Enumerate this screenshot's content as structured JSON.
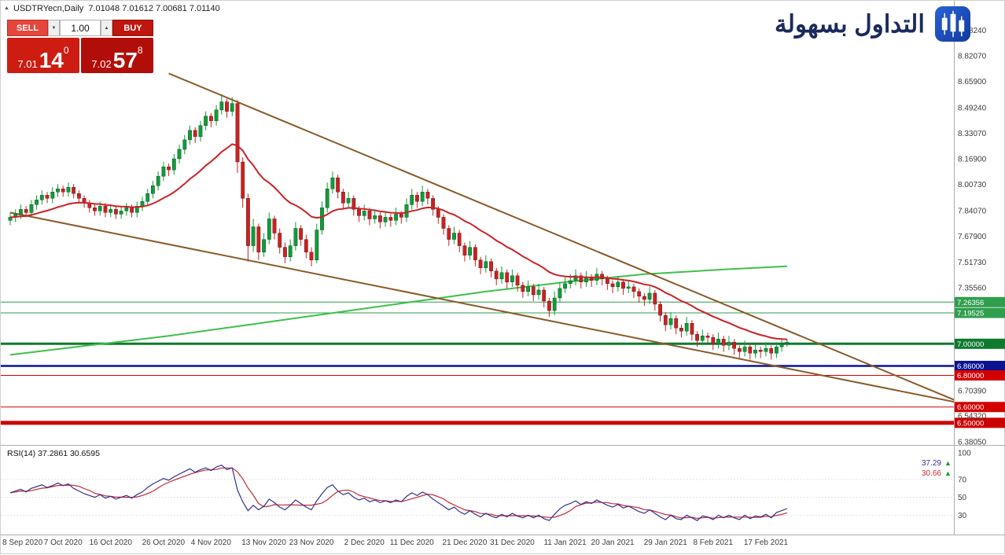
{
  "window": {
    "title_marker": "▲",
    "chart_title": "USDTRYecn,Daily  7.01048 7.01612 7.00681 7.01140"
  },
  "icons": {
    "caret_down": "▼",
    "caret_up": "▲",
    "marker_arrow": "▲"
  },
  "trade_panel": {
    "sell_label": "SELL",
    "buy_label": "BUY",
    "volume": "1.00",
    "sell_price": {
      "prefix": "7.01",
      "pips": "14",
      "sup": "0"
    },
    "buy_price": {
      "prefix": "7.02",
      "pips": "57",
      "sup": "8"
    }
  },
  "logo": {
    "text": "التداول بسهولة"
  },
  "colors": {
    "bull": "#0aa035",
    "bear": "#cf1f1f",
    "rsi_main": "#32328c",
    "rsi_signal": "#c22a33",
    "axis_text": "#3c3c3c",
    "frame": "#adadad",
    "marker_green": "#0c9b35"
  },
  "chart_data": {
    "type": "candlestick",
    "title": "USDTRYecn,Daily",
    "symbol": "USDTRYecn",
    "timeframe": "Daily",
    "current_ohlc": {
      "open": "7.01048",
      "high": "7.01612",
      "low": "7.00681",
      "close": "7.01140"
    },
    "y_axis": {
      "min": 6.375,
      "max": 9.07,
      "ticks": [
        8.9824,
        8.8207,
        8.659,
        8.4924,
        8.3307,
        8.169,
        8.0073,
        7.8407,
        7.679,
        7.5173,
        7.3556,
        6.7039,
        6.5432,
        6.3805
      ]
    },
    "x_labels": [
      "8 Sep 2020",
      "7 Oct 2020",
      "16 Oct 2020",
      "26 Oct 2020",
      "4 Nov 2020",
      "13 Nov 2020",
      "23 Nov 2020",
      "2 Dec 2020",
      "11 Dec 2020",
      "21 Dec 2020",
      "31 Dec 2020",
      "11 Jan 2021",
      "20 Jan 2021",
      "29 Jan 2021",
      "8 Feb 2021",
      "17 Feb 2021"
    ],
    "levels": [
      {
        "price": 7.26356,
        "label": "7.26356",
        "color": "#2f9e4e",
        "width": 1
      },
      {
        "price": 7.19525,
        "label": "7.19525",
        "color": "#2f9e4e",
        "width": 1
      },
      {
        "price": 7.0,
        "label": "7.00000",
        "color": "#0e7a2e",
        "width": 3
      },
      {
        "price": 6.86,
        "label": "6.86000",
        "color": "#0b1390",
        "width": 2.5
      },
      {
        "price": 6.8,
        "label": "6.80000",
        "color": "#d40000",
        "width": 1
      },
      {
        "price": 6.6,
        "label": "6.60000",
        "color": "#d40000",
        "width": 1
      },
      {
        "price": 6.5,
        "label": "6.50000",
        "color": "#cc0000",
        "width": 5
      }
    ],
    "trendlines": [
      {
        "from": [
          30,
          8.71
        ],
        "to": [
          179,
          6.64
        ],
        "color": "#8a5a28",
        "width": 2
      },
      {
        "from": [
          0,
          7.83
        ],
        "to": [
          179,
          6.63
        ],
        "color": "#8a5a28",
        "width": 2
      }
    ],
    "moving_averages": {
      "red": {
        "type": "ema",
        "period": 21,
        "color": "#cc2127"
      },
      "green": {
        "type": "sma-long",
        "color": "#3fbf4a",
        "points": [
          [
            0,
            6.93
          ],
          [
            15,
            6.99
          ],
          [
            30,
            7.05
          ],
          [
            45,
            7.12
          ],
          [
            60,
            7.19
          ],
          [
            75,
            7.26
          ],
          [
            90,
            7.33
          ],
          [
            105,
            7.39
          ],
          [
            120,
            7.44
          ],
          [
            135,
            7.47
          ],
          [
            147,
            7.49
          ]
        ]
      }
    },
    "ohlc": [
      [
        7.78,
        7.83,
        7.75,
        7.8
      ],
      [
        7.8,
        7.85,
        7.77,
        7.82
      ],
      [
        7.82,
        7.88,
        7.79,
        7.85
      ],
      [
        7.85,
        7.87,
        7.8,
        7.83
      ],
      [
        7.83,
        7.91,
        7.8,
        7.88
      ],
      [
        7.88,
        7.94,
        7.85,
        7.91
      ],
      [
        7.91,
        7.97,
        7.88,
        7.94
      ],
      [
        7.94,
        7.96,
        7.89,
        7.92
      ],
      [
        7.92,
        7.99,
        7.89,
        7.96
      ],
      [
        7.96,
        8.01,
        7.93,
        7.98
      ],
      [
        7.98,
        8.0,
        7.93,
        7.96
      ],
      [
        7.96,
        8.02,
        7.93,
        7.99
      ],
      [
        7.99,
        8.01,
        7.92,
        7.95
      ],
      [
        7.95,
        7.97,
        7.89,
        7.92
      ],
      [
        7.92,
        7.94,
        7.86,
        7.89
      ],
      [
        7.89,
        7.91,
        7.83,
        7.86
      ],
      [
        7.86,
        7.88,
        7.81,
        7.84
      ],
      [
        7.84,
        7.9,
        7.81,
        7.87
      ],
      [
        7.87,
        7.89,
        7.8,
        7.83
      ],
      [
        7.83,
        7.88,
        7.8,
        7.85
      ],
      [
        7.85,
        7.87,
        7.79,
        7.82
      ],
      [
        7.82,
        7.87,
        7.79,
        7.84
      ],
      [
        7.84,
        7.89,
        7.81,
        7.86
      ],
      [
        7.86,
        7.88,
        7.8,
        7.83
      ],
      [
        7.83,
        7.9,
        7.8,
        7.87
      ],
      [
        7.87,
        7.93,
        7.84,
        7.9
      ],
      [
        7.9,
        7.98,
        7.87,
        7.95
      ],
      [
        7.95,
        8.03,
        7.92,
        8.0
      ],
      [
        8.0,
        8.09,
        7.97,
        8.06
      ],
      [
        8.06,
        8.15,
        8.03,
        8.12
      ],
      [
        8.12,
        8.14,
        8.06,
        8.1
      ],
      [
        8.1,
        8.2,
        8.07,
        8.17
      ],
      [
        8.17,
        8.26,
        8.14,
        8.23
      ],
      [
        8.23,
        8.32,
        8.2,
        8.29
      ],
      [
        8.29,
        8.38,
        8.26,
        8.35
      ],
      [
        8.35,
        8.37,
        8.27,
        8.31
      ],
      [
        8.31,
        8.41,
        8.28,
        8.38
      ],
      [
        8.38,
        8.47,
        8.35,
        8.44
      ],
      [
        8.44,
        8.46,
        8.37,
        8.41
      ],
      [
        8.41,
        8.51,
        8.38,
        8.48
      ],
      [
        8.48,
        8.58,
        8.45,
        8.53
      ],
      [
        8.53,
        8.55,
        8.43,
        8.47
      ],
      [
        8.47,
        8.56,
        8.44,
        8.52
      ],
      [
        8.52,
        8.54,
        8.08,
        8.15
      ],
      [
        8.15,
        8.18,
        7.86,
        7.92
      ],
      [
        7.92,
        7.95,
        7.52,
        7.62
      ],
      [
        7.62,
        7.79,
        7.58,
        7.74
      ],
      [
        7.74,
        7.76,
        7.53,
        7.58
      ],
      [
        7.58,
        7.7,
        7.55,
        7.66
      ],
      [
        7.66,
        7.83,
        7.63,
        7.79
      ],
      [
        7.79,
        7.81,
        7.66,
        7.7
      ],
      [
        7.7,
        7.73,
        7.57,
        7.61
      ],
      [
        7.61,
        7.64,
        7.51,
        7.55
      ],
      [
        7.55,
        7.66,
        7.52,
        7.62
      ],
      [
        7.62,
        7.77,
        7.59,
        7.73
      ],
      [
        7.73,
        7.75,
        7.62,
        7.66
      ],
      [
        7.66,
        7.69,
        7.54,
        7.58
      ],
      [
        7.58,
        7.61,
        7.49,
        7.53
      ],
      [
        7.53,
        7.76,
        7.51,
        7.72
      ],
      [
        7.72,
        7.9,
        7.69,
        7.86
      ],
      [
        7.86,
        8.02,
        7.83,
        7.98
      ],
      [
        7.98,
        8.09,
        7.95,
        8.05
      ],
      [
        8.05,
        8.07,
        7.92,
        7.96
      ],
      [
        7.96,
        7.98,
        7.85,
        7.89
      ],
      [
        7.89,
        7.96,
        7.86,
        7.92
      ],
      [
        7.92,
        7.94,
        7.81,
        7.85
      ],
      [
        7.85,
        7.87,
        7.77,
        7.81
      ],
      [
        7.81,
        7.88,
        7.78,
        7.84
      ],
      [
        7.84,
        7.86,
        7.75,
        7.79
      ],
      [
        7.79,
        7.85,
        7.76,
        7.81
      ],
      [
        7.81,
        7.83,
        7.73,
        7.77
      ],
      [
        7.77,
        7.84,
        7.74,
        7.8
      ],
      [
        7.8,
        7.82,
        7.74,
        7.78
      ],
      [
        7.78,
        7.86,
        7.75,
        7.82
      ],
      [
        7.82,
        7.84,
        7.76,
        7.8
      ],
      [
        7.8,
        7.92,
        7.77,
        7.88
      ],
      [
        7.88,
        7.98,
        7.85,
        7.94
      ],
      [
        7.94,
        7.96,
        7.86,
        7.9
      ],
      [
        7.9,
        8.0,
        7.87,
        7.96
      ],
      [
        7.96,
        7.98,
        7.88,
        7.92
      ],
      [
        7.92,
        7.94,
        7.81,
        7.85
      ],
      [
        7.85,
        7.87,
        7.76,
        7.8
      ],
      [
        7.8,
        7.82,
        7.69,
        7.73
      ],
      [
        7.73,
        7.75,
        7.62,
        7.66
      ],
      [
        7.66,
        7.74,
        7.63,
        7.7
      ],
      [
        7.7,
        7.72,
        7.58,
        7.62
      ],
      [
        7.62,
        7.64,
        7.52,
        7.56
      ],
      [
        7.56,
        7.65,
        7.53,
        7.61
      ],
      [
        7.61,
        7.63,
        7.49,
        7.53
      ],
      [
        7.53,
        7.55,
        7.44,
        7.48
      ],
      [
        7.48,
        7.56,
        7.45,
        7.52
      ],
      [
        7.52,
        7.54,
        7.42,
        7.46
      ],
      [
        7.46,
        7.48,
        7.37,
        7.41
      ],
      [
        7.41,
        7.49,
        7.38,
        7.45
      ],
      [
        7.45,
        7.47,
        7.35,
        7.39
      ],
      [
        7.39,
        7.47,
        7.36,
        7.43
      ],
      [
        7.43,
        7.45,
        7.33,
        7.37
      ],
      [
        7.37,
        7.39,
        7.29,
        7.33
      ],
      [
        7.33,
        7.4,
        7.3,
        7.36
      ],
      [
        7.36,
        7.38,
        7.27,
        7.31
      ],
      [
        7.31,
        7.38,
        7.28,
        7.34
      ],
      [
        7.34,
        7.36,
        7.23,
        7.27
      ],
      [
        7.27,
        7.29,
        7.17,
        7.21
      ],
      [
        7.21,
        7.33,
        7.18,
        7.29
      ],
      [
        7.29,
        7.39,
        7.26,
        7.35
      ],
      [
        7.35,
        7.42,
        7.32,
        7.38
      ],
      [
        7.38,
        7.44,
        7.35,
        7.4
      ],
      [
        7.4,
        7.47,
        7.37,
        7.43
      ],
      [
        7.43,
        7.45,
        7.35,
        7.39
      ],
      [
        7.39,
        7.46,
        7.36,
        7.42
      ],
      [
        7.42,
        7.44,
        7.36,
        7.4
      ],
      [
        7.4,
        7.48,
        7.37,
        7.44
      ],
      [
        7.44,
        7.46,
        7.37,
        7.41
      ],
      [
        7.41,
        7.43,
        7.34,
        7.38
      ],
      [
        7.38,
        7.4,
        7.32,
        7.36
      ],
      [
        7.36,
        7.43,
        7.33,
        7.39
      ],
      [
        7.39,
        7.41,
        7.31,
        7.35
      ],
      [
        7.35,
        7.4,
        7.32,
        7.36
      ],
      [
        7.36,
        7.38,
        7.29,
        7.33
      ],
      [
        7.33,
        7.35,
        7.26,
        7.3
      ],
      [
        7.3,
        7.32,
        7.24,
        7.28
      ],
      [
        7.28,
        7.36,
        7.25,
        7.32
      ],
      [
        7.32,
        7.34,
        7.21,
        7.25
      ],
      [
        7.25,
        7.27,
        7.14,
        7.18
      ],
      [
        7.18,
        7.2,
        7.08,
        7.12
      ],
      [
        7.12,
        7.2,
        7.09,
        7.16
      ],
      [
        7.16,
        7.18,
        7.06,
        7.1
      ],
      [
        7.1,
        7.12,
        7.04,
        7.08
      ],
      [
        7.08,
        7.17,
        7.05,
        7.13
      ],
      [
        7.13,
        7.15,
        7.02,
        7.06
      ],
      [
        7.06,
        7.08,
        6.98,
        7.02
      ],
      [
        7.02,
        7.09,
        6.99,
        7.05
      ],
      [
        7.05,
        7.07,
        7.0,
        7.04
      ],
      [
        7.04,
        7.06,
        6.96,
        7.0
      ],
      [
        7.0,
        7.07,
        6.97,
        7.03
      ],
      [
        7.03,
        7.05,
        6.95,
        6.99
      ],
      [
        6.99,
        7.05,
        6.96,
        7.01
      ],
      [
        7.01,
        7.03,
        6.93,
        6.97
      ],
      [
        6.97,
        6.99,
        6.91,
        6.95
      ],
      [
        6.95,
        7.02,
        6.92,
        6.98
      ],
      [
        6.98,
        7.0,
        6.9,
        6.94
      ],
      [
        6.94,
        7.0,
        6.91,
        6.96
      ],
      [
        6.96,
        6.98,
        6.91,
        6.95
      ],
      [
        6.95,
        7.01,
        6.92,
        6.97
      ],
      [
        6.97,
        6.99,
        6.9,
        6.94
      ],
      [
        6.94,
        7.01,
        6.91,
        6.98
      ],
      [
        6.98,
        7.03,
        6.95,
        7.0
      ],
      [
        7.0,
        7.03,
        6.98,
        7.01
      ]
    ],
    "rsi": {
      "label": "RSI(14) 37.2861 30.6595",
      "period": 14,
      "signal_sma": 5,
      "axis_ticks": [
        100,
        70,
        50,
        30
      ],
      "range": [
        10,
        106
      ],
      "markers": [
        {
          "text": "37.29",
          "color": "#32328c"
        },
        {
          "text": "30.66",
          "color": "#c22a33"
        }
      ],
      "values": [
        55,
        57,
        59,
        56,
        60,
        62,
        64,
        61,
        63,
        66,
        63,
        65,
        60,
        57,
        54,
        52,
        50,
        53,
        49,
        51,
        48,
        50,
        52,
        49,
        53,
        56,
        61,
        65,
        68,
        71,
        69,
        73,
        76,
        79,
        82,
        78,
        81,
        83,
        80,
        84,
        86,
        81,
        83,
        58,
        45,
        35,
        41,
        36,
        40,
        48,
        44,
        39,
        36,
        41,
        47,
        43,
        39,
        36,
        46,
        54,
        61,
        64,
        57,
        53,
        55,
        50,
        47,
        49,
        45,
        47,
        44,
        46,
        44,
        47,
        45,
        51,
        55,
        52,
        56,
        53,
        48,
        44,
        40,
        36,
        39,
        34,
        31,
        35,
        31,
        28,
        32,
        29,
        27,
        31,
        28,
        32,
        29,
        27,
        30,
        27,
        30,
        26,
        24,
        31,
        37,
        41,
        43,
        46,
        42,
        45,
        43,
        47,
        44,
        41,
        39,
        42,
        38,
        40,
        37,
        34,
        32,
        36,
        32,
        28,
        25,
        30,
        26,
        25,
        30,
        27,
        24,
        29,
        28,
        25,
        30,
        27,
        30,
        27,
        25,
        30,
        26,
        29,
        28,
        31,
        27,
        33,
        35,
        37.3
      ]
    }
  }
}
